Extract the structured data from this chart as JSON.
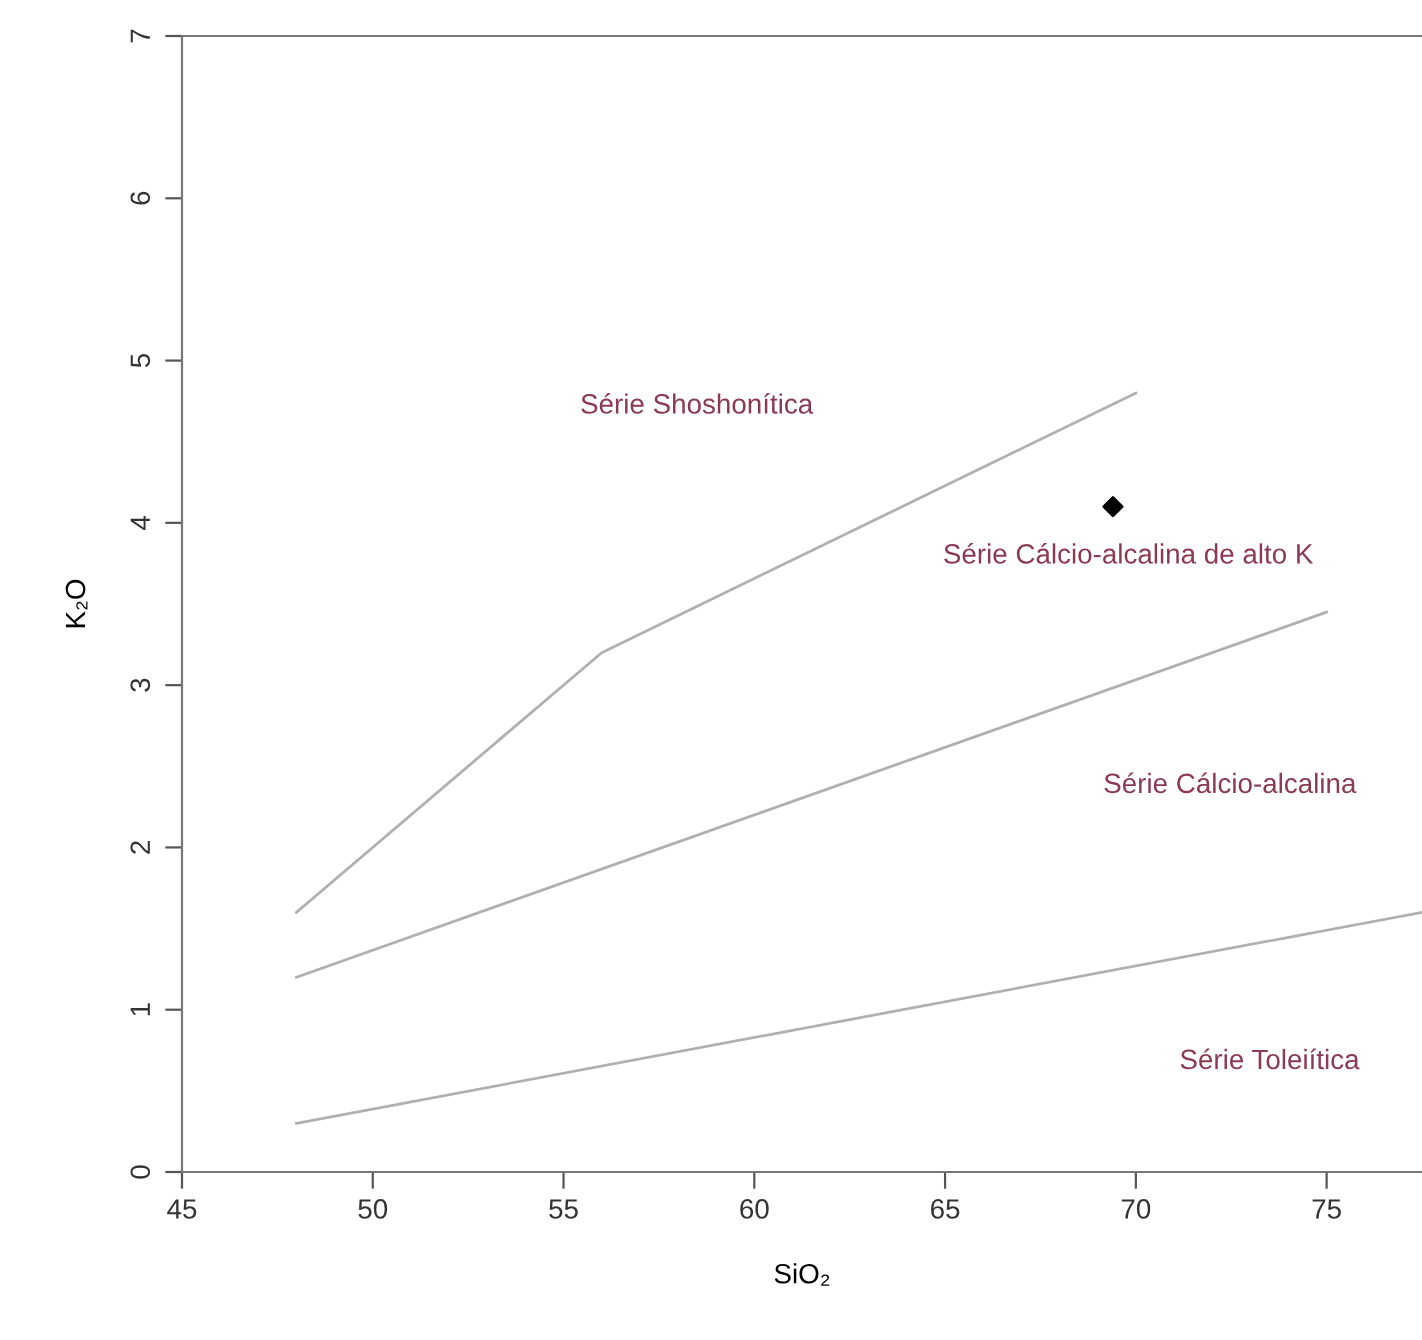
{
  "chart_data": {
    "type": "line",
    "xlabel": "SiO₂",
    "ylabel": "K₂O",
    "xlim": [
      45,
      77.5
    ],
    "xticks": [
      45,
      50,
      55,
      60,
      65,
      70,
      75
    ],
    "ylim": [
      0,
      7
    ],
    "yticks": [
      0,
      1,
      2,
      3,
      4,
      5,
      6,
      7
    ],
    "grid": false,
    "series": [
      {
        "color": "#b0b0b0",
        "x": [
          48,
          77.5
        ],
        "values": [
          0.3,
          1.6
        ],
        "marker": "none",
        "line_style": "solid"
      },
      {
        "color": "#b0b0b0",
        "x": [
          48,
          75
        ],
        "values": [
          1.2,
          3.45
        ],
        "marker": "none",
        "line_style": "solid"
      },
      {
        "color": "#b0b0b0",
        "x": [
          48,
          56,
          70
        ],
        "values": [
          1.6,
          3.2,
          4.8
        ],
        "marker": "none",
        "line_style": "solid"
      },
      {
        "type": "scatter",
        "color": "#000000",
        "x": [
          69.4
        ],
        "values": [
          4.1
        ],
        "marker": "diamond"
      }
    ],
    "annotations": [
      "Série Shoshonítica",
      "Série Cálcio-alcalina de alto K",
      "Série Cálcio-alcalina",
      "Série Toleiítica"
    ]
  }
}
